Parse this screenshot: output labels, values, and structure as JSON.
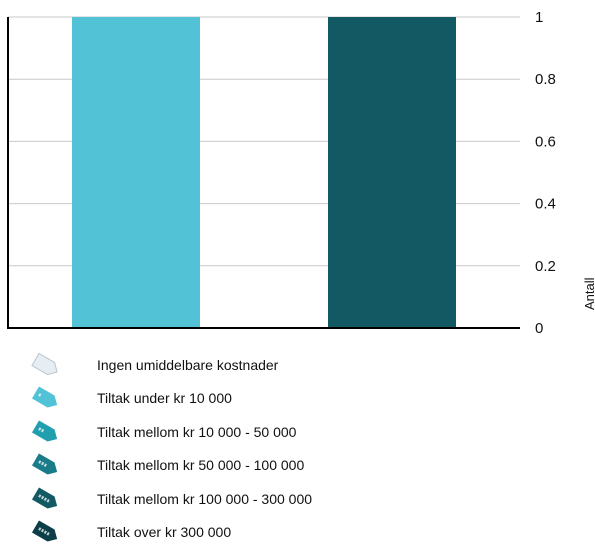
{
  "chart_data": {
    "type": "bar",
    "categories": [
      "",
      ""
    ],
    "values": [
      1,
      1
    ],
    "colors": [
      "#52c2d6",
      "#125964"
    ],
    "ylabel": "Antall",
    "ylim": [
      0,
      1
    ],
    "yticks": [
      0,
      0.2,
      0.4,
      0.6,
      0.8,
      1
    ],
    "ytick_labels": [
      "0",
      "0.2",
      "0.4",
      "0.6",
      "0.8",
      "1"
    ],
    "y_axis_side": "right",
    "grid": true,
    "legend_position": "bottom-left"
  },
  "legend": {
    "items": [
      {
        "label": "Ingen umiddelbare kostnader",
        "icon": "price-tag-icon",
        "color": "#e6edf3"
      },
      {
        "label": "Tiltak under kr 10 000",
        "icon": "price-tag-icon",
        "color": "#52c2d6"
      },
      {
        "label": "Tiltak mellom kr 10 000 - 50 000",
        "icon": "price-tag-icon",
        "color": "#219fae"
      },
      {
        "label": "Tiltak mellom kr 50 000 - 100 000",
        "icon": "price-tag-icon",
        "color": "#1a7b89"
      },
      {
        "label": "Tiltak mellom kr 100 000 - 300 000",
        "icon": "price-tag-icon",
        "color": "#125964"
      },
      {
        "label": "Tiltak over kr  300 000",
        "icon": "price-tag-icon",
        "color": "#0c3d48"
      }
    ]
  }
}
